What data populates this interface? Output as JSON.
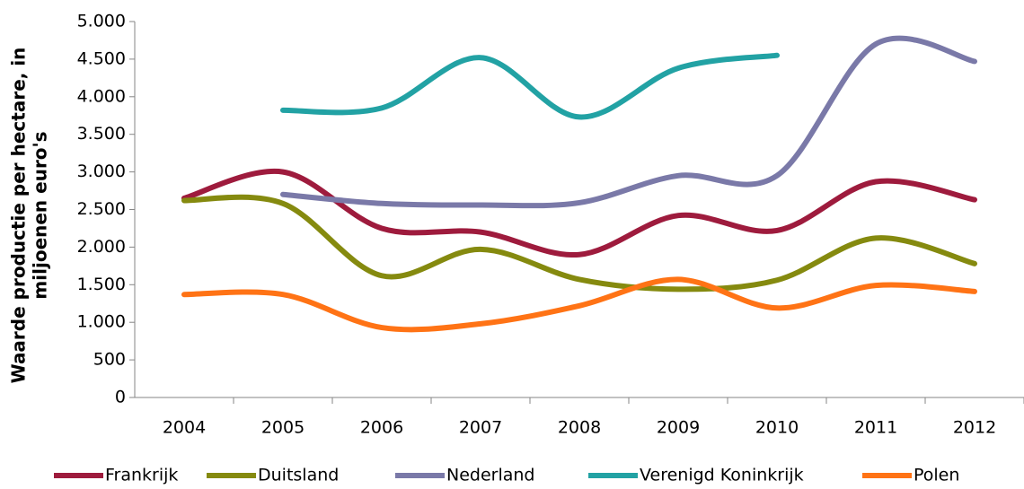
{
  "chart_data": {
    "type": "line",
    "y_label": [
      "Waarde productie per hectare, in",
      "miljoenen euro's"
    ],
    "categories": [
      "2004",
      "2005",
      "2006",
      "2007",
      "2008",
      "2009",
      "2010",
      "2011",
      "2012"
    ],
    "series": [
      {
        "name": "Frankrijk",
        "color": "#9e1b3d",
        "values": [
          2650,
          3000,
          2250,
          2200,
          1900,
          2420,
          2220,
          2870,
          2630
        ]
      },
      {
        "name": "Duitsland",
        "color": "#858a0f",
        "values": [
          2620,
          2580,
          1620,
          1970,
          1570,
          1440,
          1560,
          2120,
          1780
        ]
      },
      {
        "name": "Nederland",
        "color": "#7a79a8",
        "values": [
          null,
          2700,
          2580,
          2560,
          2590,
          2950,
          2950,
          4700,
          4470
        ]
      },
      {
        "name": "Verenigd Koninkrijk",
        "color": "#22a2a4",
        "values": [
          null,
          3820,
          3850,
          4520,
          3730,
          4380,
          4550,
          null,
          null
        ]
      },
      {
        "name": "Polen",
        "color": "#ff7315",
        "values": [
          1370,
          1370,
          930,
          980,
          1220,
          1570,
          1190,
          1490,
          1410
        ]
      }
    ],
    "ylim": [
      0,
      5000
    ],
    "yticks": [
      0,
      500,
      {
        "value": 1000,
        "label": "1.000"
      },
      {
        "value": 1500,
        "label": "1.500"
      },
      {
        "value": 2000,
        "label": "2.000"
      },
      {
        "value": 2500,
        "label": "2.500"
      },
      {
        "value": 3000,
        "label": "3.000"
      },
      {
        "value": 3500,
        "label": "3.500"
      },
      {
        "value": 4000,
        "label": "4.000"
      },
      {
        "value": 4500,
        "label": "4.500"
      },
      {
        "value": 5000,
        "label": "5.000"
      }
    ],
    "grid": false,
    "legend": "bottom"
  }
}
